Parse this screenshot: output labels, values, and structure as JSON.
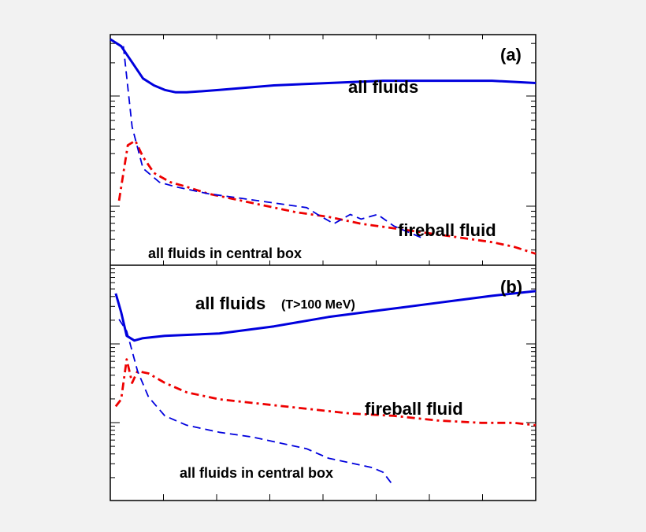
{
  "chart_data": [
    {
      "type": "line",
      "panel_label": "(a)",
      "yscale": "log",
      "xlim": [
        0,
        39
      ],
      "ylim": [
        0,
        100
      ],
      "series": [
        {
          "name": "all fluids",
          "color": "#0000dd",
          "style": "solid",
          "points": [
            [
              0,
              98
            ],
            [
              1,
              95
            ],
            [
              2,
              88
            ],
            [
              3,
              81
            ],
            [
              4,
              78
            ],
            [
              5,
              76
            ],
            [
              6,
              75
            ],
            [
              7,
              75
            ],
            [
              10,
              76
            ],
            [
              15,
              78
            ],
            [
              20,
              79
            ],
            [
              25,
              80
            ],
            [
              30,
              80
            ],
            [
              35,
              80
            ],
            [
              39,
              79
            ]
          ]
        },
        {
          "name": "fireball fluid",
          "color": "#ee0000",
          "style": "dashdot",
          "points": [
            [
              0.8,
              28
            ],
            [
              1.6,
              52
            ],
            [
              2.3,
              54
            ],
            [
              3,
              47
            ],
            [
              4,
              40
            ],
            [
              5.5,
              36
            ],
            [
              7,
              34
            ],
            [
              9,
              31
            ],
            [
              11,
              29
            ],
            [
              14,
              26
            ],
            [
              17,
              23
            ],
            [
              20,
              21
            ],
            [
              23,
              18
            ],
            [
              26,
              16
            ],
            [
              29,
              14
            ],
            [
              32,
              12
            ],
            [
              35,
              10
            ],
            [
              37,
              8
            ],
            [
              39,
              5
            ]
          ]
        },
        {
          "name": "all fluids in central box",
          "color": "#0000dd",
          "style": "dashed",
          "points": [
            [
              1.2,
              95
            ],
            [
              2,
              60
            ],
            [
              3,
              42
            ],
            [
              4.5,
              36
            ],
            [
              6,
              34
            ],
            [
              9,
              31
            ],
            [
              12,
              29
            ],
            [
              15,
              27
            ],
            [
              18,
              25
            ],
            [
              19,
              22
            ],
            [
              20.5,
              18
            ],
            [
              22,
              22
            ],
            [
              23,
              20
            ],
            [
              24.5,
              22
            ],
            [
              26,
              17
            ],
            [
              27,
              15
            ],
            [
              28.5,
              12
            ]
          ]
        }
      ],
      "annotations": [
        "all fluids",
        "fireball fluid",
        "all fluids in central box"
      ]
    },
    {
      "type": "line",
      "panel_label": "(b)",
      "yscale": "log",
      "xlim": [
        0,
        39
      ],
      "ylim": [
        0,
        100
      ],
      "series": [
        {
          "name": "all fluids",
          "color": "#0000dd",
          "style": "solid",
          "points": [
            [
              0.5,
              88
            ],
            [
              1,
              80
            ],
            [
              1.5,
              70
            ],
            [
              2.2,
              68
            ],
            [
              3,
              69
            ],
            [
              5,
              70
            ],
            [
              10,
              71
            ],
            [
              15,
              74
            ],
            [
              20,
              78
            ],
            [
              25,
              81
            ],
            [
              30,
              84
            ],
            [
              35,
              87
            ],
            [
              39,
              89
            ]
          ]
        },
        {
          "name": "fireball fluid",
          "color": "#ee0000",
          "style": "dashdot",
          "points": [
            [
              0.5,
              40
            ],
            [
              1,
              43
            ],
            [
              1.5,
              60
            ],
            [
              2,
              50
            ],
            [
              2.5,
              55
            ],
            [
              3.5,
              54
            ],
            [
              5,
              50
            ],
            [
              7,
              46
            ],
            [
              10,
              43
            ],
            [
              14,
              41
            ],
            [
              18,
              39
            ],
            [
              22,
              37
            ],
            [
              26,
              36
            ],
            [
              30,
              34
            ],
            [
              34,
              33
            ],
            [
              37,
              33
            ],
            [
              39,
              32
            ]
          ]
        },
        {
          "name": "all fluids in central box",
          "color": "#0000dd",
          "style": "dashed",
          "points": [
            [
              0.8,
              77
            ],
            [
              1.5,
              72
            ],
            [
              2.5,
              55
            ],
            [
              3.5,
              44
            ],
            [
              5,
              36
            ],
            [
              7,
              32
            ],
            [
              10,
              29
            ],
            [
              13,
              27
            ],
            [
              16,
              24
            ],
            [
              18,
              22
            ],
            [
              20,
              18
            ],
            [
              22,
              16
            ],
            [
              24,
              14
            ],
            [
              25,
              12
            ],
            [
              26,
              6
            ]
          ]
        }
      ],
      "annotations": [
        "all fluids",
        "(T>100 MeV)",
        "fireball fluid",
        "all fluids in central box"
      ]
    }
  ]
}
